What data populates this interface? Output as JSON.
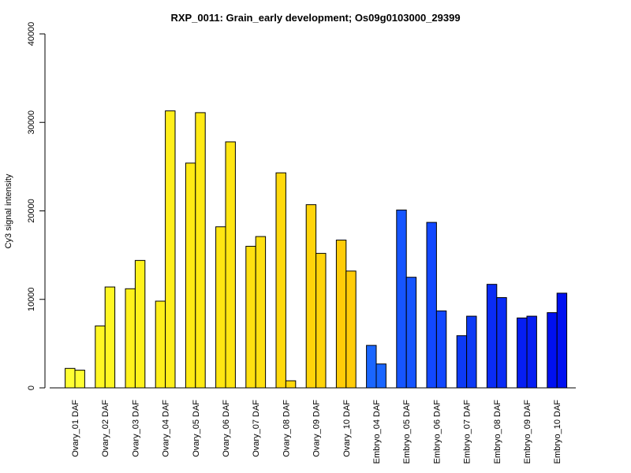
{
  "chart_data": {
    "type": "bar",
    "title": "RXP_0011: Grain_early development; Os09g0103000_29399",
    "xlabel": "",
    "ylabel": "Cy3 signal intensity",
    "ylim": [
      0,
      40000
    ],
    "yticks": [
      0,
      10000,
      20000,
      30000,
      40000
    ],
    "grid": false,
    "legend": "none",
    "categories": [
      "Ovary_01 DAF",
      "Ovary_02 DAF",
      "Ovary_03 DAF",
      "Ovary_04 DAF",
      "Ovary_05 DAF",
      "Ovary_06 DAF",
      "Ovary_07 DAF",
      "Ovary_08 DAF",
      "Ovary_09 DAF",
      "Ovary_10 DAF",
      "Embryo_04 DAF",
      "Embryo_05 DAF",
      "Embryo_06 DAF",
      "Embryo_07 DAF",
      "Embryo_08 DAF",
      "Embryo_09 DAF",
      "Embryo_10 DAF"
    ],
    "series": [
      {
        "values": [
          2200,
          7000,
          11200,
          9800,
          25400,
          18200,
          16000,
          24300,
          20700,
          16700,
          4800,
          20100,
          18700,
          5900,
          11700,
          7900,
          8500
        ]
      },
      {
        "values": [
          2000,
          11400,
          14400,
          31300,
          31100,
          27800,
          17100,
          800,
          15200,
          13200,
          2700,
          12500,
          8700,
          8100,
          10200,
          8100,
          10700
        ]
      }
    ],
    "colors": [
      [
        "#ffff33",
        "#ffff33"
      ],
      [
        "#fff724",
        "#fff724"
      ],
      [
        "#fff21c",
        "#fff21c"
      ],
      [
        "#ffef1a",
        "#ffef1a"
      ],
      [
        "#ffea14",
        "#ffea14"
      ],
      [
        "#ffe612",
        "#ffe612"
      ],
      [
        "#ffe010",
        "#ffe010"
      ],
      [
        "#ffd90c",
        "#ffd90c"
      ],
      [
        "#ffd40a",
        "#ffd40a"
      ],
      [
        "#ffcc08",
        "#ffcc08"
      ],
      [
        "#1a66ff",
        "#1a66ff"
      ],
      [
        "#1655ff",
        "#1655ff"
      ],
      [
        "#1248ff",
        "#1248ff"
      ],
      [
        "#0d3af5",
        "#0d3af5"
      ],
      [
        "#0a2cf5",
        "#0a2cf5"
      ],
      [
        "#061ef2",
        "#061ef2"
      ],
      [
        "#0010f0",
        "#0010f0"
      ]
    ]
  }
}
